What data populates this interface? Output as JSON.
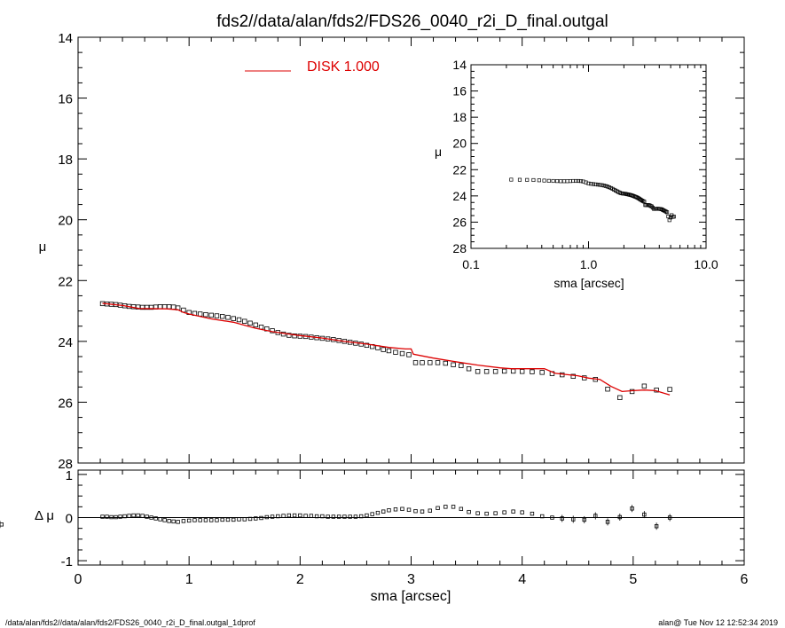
{
  "page": {
    "title": "fds2//data/alan/fds2/FDS26_0040_r2i_D_final.outgal",
    "footer_left": "/data/alan/fds2//data/alan/fds2/FDS26_0040_r2i_D_final.outgal_1dprof",
    "footer_right": "alan@  Tue Nov 12 12:52:34 2019"
  },
  "colors": {
    "model": "#dd0000",
    "data": "#000000"
  },
  "chart_data": [
    {
      "id": "main-profile",
      "type": "scatter",
      "xlabel": "",
      "ylabel": "μ",
      "xlim": [
        0,
        6
      ],
      "ylim": [
        28,
        14
      ],
      "y_inverted": true,
      "yticks": [
        "14",
        "16",
        "18",
        "20",
        "22",
        "24",
        "26",
        "28"
      ],
      "legend": {
        "label": "DISK  1.000",
        "placement": "top-center"
      },
      "data_points": {
        "x": [
          0.22,
          0.26,
          0.3,
          0.34,
          0.38,
          0.42,
          0.46,
          0.5,
          0.54,
          0.58,
          0.62,
          0.66,
          0.7,
          0.74,
          0.78,
          0.82,
          0.86,
          0.9,
          0.95,
          1.0,
          1.05,
          1.1,
          1.15,
          1.2,
          1.25,
          1.3,
          1.35,
          1.4,
          1.45,
          1.5,
          1.55,
          1.6,
          1.65,
          1.7,
          1.75,
          1.8,
          1.85,
          1.9,
          1.95,
          2.0,
          2.05,
          2.1,
          2.15,
          2.2,
          2.25,
          2.3,
          2.35,
          2.4,
          2.45,
          2.5,
          2.55,
          2.6,
          2.65,
          2.7,
          2.75,
          2.8,
          2.86,
          2.92,
          2.98,
          3.04,
          3.1,
          3.17,
          3.24,
          3.31,
          3.38,
          3.45,
          3.52,
          3.6,
          3.68,
          3.76,
          3.84,
          3.92,
          4.0,
          4.09,
          4.18,
          4.27,
          4.36,
          4.46,
          4.56,
          4.66,
          4.77,
          4.88,
          4.99,
          5.1,
          5.21,
          5.33
        ],
        "y": [
          22.76,
          22.77,
          22.78,
          22.79,
          22.81,
          22.83,
          22.85,
          22.86,
          22.87,
          22.88,
          22.88,
          22.88,
          22.87,
          22.86,
          22.86,
          22.86,
          22.87,
          22.9,
          22.97,
          23.05,
          23.08,
          23.1,
          23.12,
          23.14,
          23.16,
          23.18,
          23.21,
          23.25,
          23.29,
          23.34,
          23.4,
          23.46,
          23.53,
          23.59,
          23.65,
          23.71,
          23.76,
          23.8,
          23.82,
          23.83,
          23.84,
          23.86,
          23.88,
          23.9,
          23.92,
          23.94,
          23.97,
          24.0,
          24.03,
          24.06,
          24.09,
          24.13,
          24.17,
          24.21,
          24.27,
          24.31,
          24.36,
          24.4,
          24.44,
          24.7,
          24.7,
          24.7,
          24.7,
          24.72,
          24.77,
          24.8,
          24.9,
          24.99,
          24.99,
          24.99,
          24.98,
          24.98,
          24.99,
          25.0,
          25.02,
          25.06,
          25.1,
          25.15,
          25.2,
          25.25,
          25.57,
          25.85,
          25.65,
          25.47,
          25.6,
          25.58
        ]
      },
      "model_line": {
        "name": "DISK  1.000",
        "x": [
          0.22,
          0.4,
          0.55,
          0.8,
          0.9,
          0.95,
          1.0,
          1.2,
          1.4,
          1.6,
          1.75,
          1.9,
          2.0,
          2.2,
          2.4,
          2.6,
          2.8,
          2.95,
          3.0,
          3.02,
          3.2,
          3.4,
          3.6,
          3.8,
          3.9,
          4.0,
          4.2,
          4.3,
          4.5,
          4.6,
          4.7,
          4.8,
          4.9,
          5.0,
          5.1,
          5.2,
          5.33
        ],
        "y": [
          22.75,
          22.82,
          22.92,
          22.93,
          22.96,
          23.05,
          23.1,
          23.26,
          23.37,
          23.57,
          23.68,
          23.76,
          23.81,
          23.89,
          24.0,
          24.09,
          24.2,
          24.25,
          24.25,
          24.42,
          24.55,
          24.67,
          24.78,
          24.87,
          24.9,
          24.9,
          24.9,
          25.05,
          25.13,
          25.21,
          25.25,
          25.48,
          25.65,
          25.62,
          25.6,
          25.62,
          25.76
        ]
      }
    },
    {
      "id": "inset-log-profile",
      "type": "scatter",
      "xlabel": "sma [arcsec]",
      "ylabel": "μ",
      "xscale": "log",
      "xlim": [
        0.1,
        10.0
      ],
      "xticks": [
        "0.1",
        "1.0",
        "10.0"
      ],
      "ylim": [
        28,
        14
      ],
      "y_inverted": true,
      "yticks": [
        "14",
        "16",
        "18",
        "20",
        "22",
        "24",
        "26",
        "28"
      ]
    },
    {
      "id": "residuals",
      "type": "scatter",
      "xlabel": "sma [arcsec]",
      "ylabel": "Δ μ",
      "xlim": [
        0,
        6
      ],
      "xticks": [
        "0",
        "1",
        "2",
        "3",
        "4",
        "5",
        "6"
      ],
      "ylim": [
        -1.1,
        1.1
      ],
      "yticks": [
        "-1",
        "0",
        "1"
      ],
      "reference_line": 0,
      "residual_y": [
        0.02,
        0.02,
        0.01,
        0.01,
        0.02,
        0.03,
        0.04,
        0.05,
        0.05,
        0.04,
        0.02,
        0.0,
        -0.02,
        -0.04,
        -0.06,
        -0.08,
        -0.09,
        -0.1,
        -0.08,
        -0.07,
        -0.06,
        -0.06,
        -0.06,
        -0.06,
        -0.06,
        -0.05,
        -0.05,
        -0.05,
        -0.04,
        -0.04,
        -0.03,
        -0.02,
        -0.01,
        0.01,
        0.02,
        0.03,
        0.04,
        0.05,
        0.05,
        0.05,
        0.04,
        0.04,
        0.03,
        0.03,
        0.02,
        0.02,
        0.02,
        0.02,
        0.02,
        0.02,
        0.03,
        0.05,
        0.08,
        0.11,
        0.14,
        0.17,
        0.19,
        0.2,
        0.18,
        0.15,
        0.14,
        0.16,
        0.22,
        0.25,
        0.25,
        0.2,
        0.13,
        0.1,
        0.09,
        0.1,
        0.12,
        0.14,
        0.12,
        0.09,
        0.03,
        0.0,
        -0.02,
        -0.04,
        -0.05,
        0.04,
        -0.1,
        0.01,
        0.21,
        0.07,
        -0.2,
        0.0,
        -0.16
      ]
    }
  ]
}
